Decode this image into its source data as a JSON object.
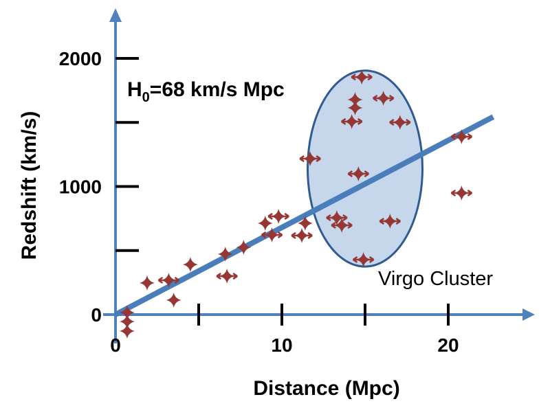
{
  "chart_data": {
    "type": "scatter",
    "title": "",
    "xlabel": "Distance (Mpc)",
    "ylabel": "Redshift (km/s)",
    "xlim": [
      0,
      24
    ],
    "ylim": [
      -200,
      2000
    ],
    "x_ticks": [
      0,
      5,
      10,
      15,
      20
    ],
    "x_tick_labels": [
      "0",
      "10",
      "20"
    ],
    "x_tick_label_values": [
      0,
      10,
      20
    ],
    "y_ticks": [
      0,
      500,
      1000,
      1500,
      2000
    ],
    "y_tick_labels": [
      "0",
      "1000",
      "2000"
    ],
    "y_tick_label_values": [
      0,
      1000,
      2000
    ],
    "grid": false,
    "annotation_h0": {
      "main": "H",
      "sub": "0",
      "rest": "=68 km/s Mpc"
    },
    "annotation_cluster": "Virgo Cluster",
    "fit_line": {
      "slope": 68,
      "x_range": [
        0,
        22.7
      ]
    },
    "cluster_ellipse": {
      "center": [
        15,
        1140
      ],
      "semi_axis_x": 3.45,
      "semi_axis_y": 765
    },
    "colors": {
      "axis": "#4f81bd",
      "line": "#4a7ebb",
      "points": "#953735",
      "ellipse_fill": "#c6d7ec",
      "ellipse_stroke": "#2f5b8f",
      "ticks": "#000000"
    },
    "points": [
      {
        "x": 0.7,
        "y": 16,
        "xerr": false
      },
      {
        "x": 0.7,
        "y": -54,
        "xerr": false
      },
      {
        "x": 0.7,
        "y": -129,
        "xerr": false
      },
      {
        "x": 1.9,
        "y": 247,
        "xerr": false
      },
      {
        "x": 3.2,
        "y": 268,
        "xerr": true
      },
      {
        "x": 3.5,
        "y": 113,
        "xerr": false
      },
      {
        "x": 4.5,
        "y": 391,
        "xerr": false
      },
      {
        "x": 6.6,
        "y": 472,
        "xerr": false
      },
      {
        "x": 6.7,
        "y": 300,
        "xerr": true
      },
      {
        "x": 7.7,
        "y": 525,
        "xerr": false
      },
      {
        "x": 9.0,
        "y": 713,
        "xerr": false
      },
      {
        "x": 9.4,
        "y": 622,
        "xerr": true
      },
      {
        "x": 9.8,
        "y": 767,
        "xerr": true
      },
      {
        "x": 11.2,
        "y": 617,
        "xerr": true
      },
      {
        "x": 11.4,
        "y": 713,
        "xerr": false
      },
      {
        "x": 11.7,
        "y": 1217,
        "xerr": true
      },
      {
        "x": 13.3,
        "y": 756,
        "xerr": true
      },
      {
        "x": 13.6,
        "y": 697,
        "xerr": true
      },
      {
        "x": 14.2,
        "y": 1507,
        "xerr": true
      },
      {
        "x": 14.4,
        "y": 1678,
        "xerr": false
      },
      {
        "x": 14.4,
        "y": 1614,
        "xerr": false
      },
      {
        "x": 14.6,
        "y": 1099,
        "xerr": true
      },
      {
        "x": 14.8,
        "y": 1854,
        "xerr": true
      },
      {
        "x": 14.9,
        "y": 429,
        "xerr": true
      },
      {
        "x": 16.1,
        "y": 1689,
        "xerr": true
      },
      {
        "x": 16.5,
        "y": 729,
        "xerr": true
      },
      {
        "x": 17.1,
        "y": 1501,
        "xerr": true
      },
      {
        "x": 20.8,
        "y": 1389,
        "xerr": true
      },
      {
        "x": 20.8,
        "y": 949,
        "xerr": true
      }
    ]
  }
}
